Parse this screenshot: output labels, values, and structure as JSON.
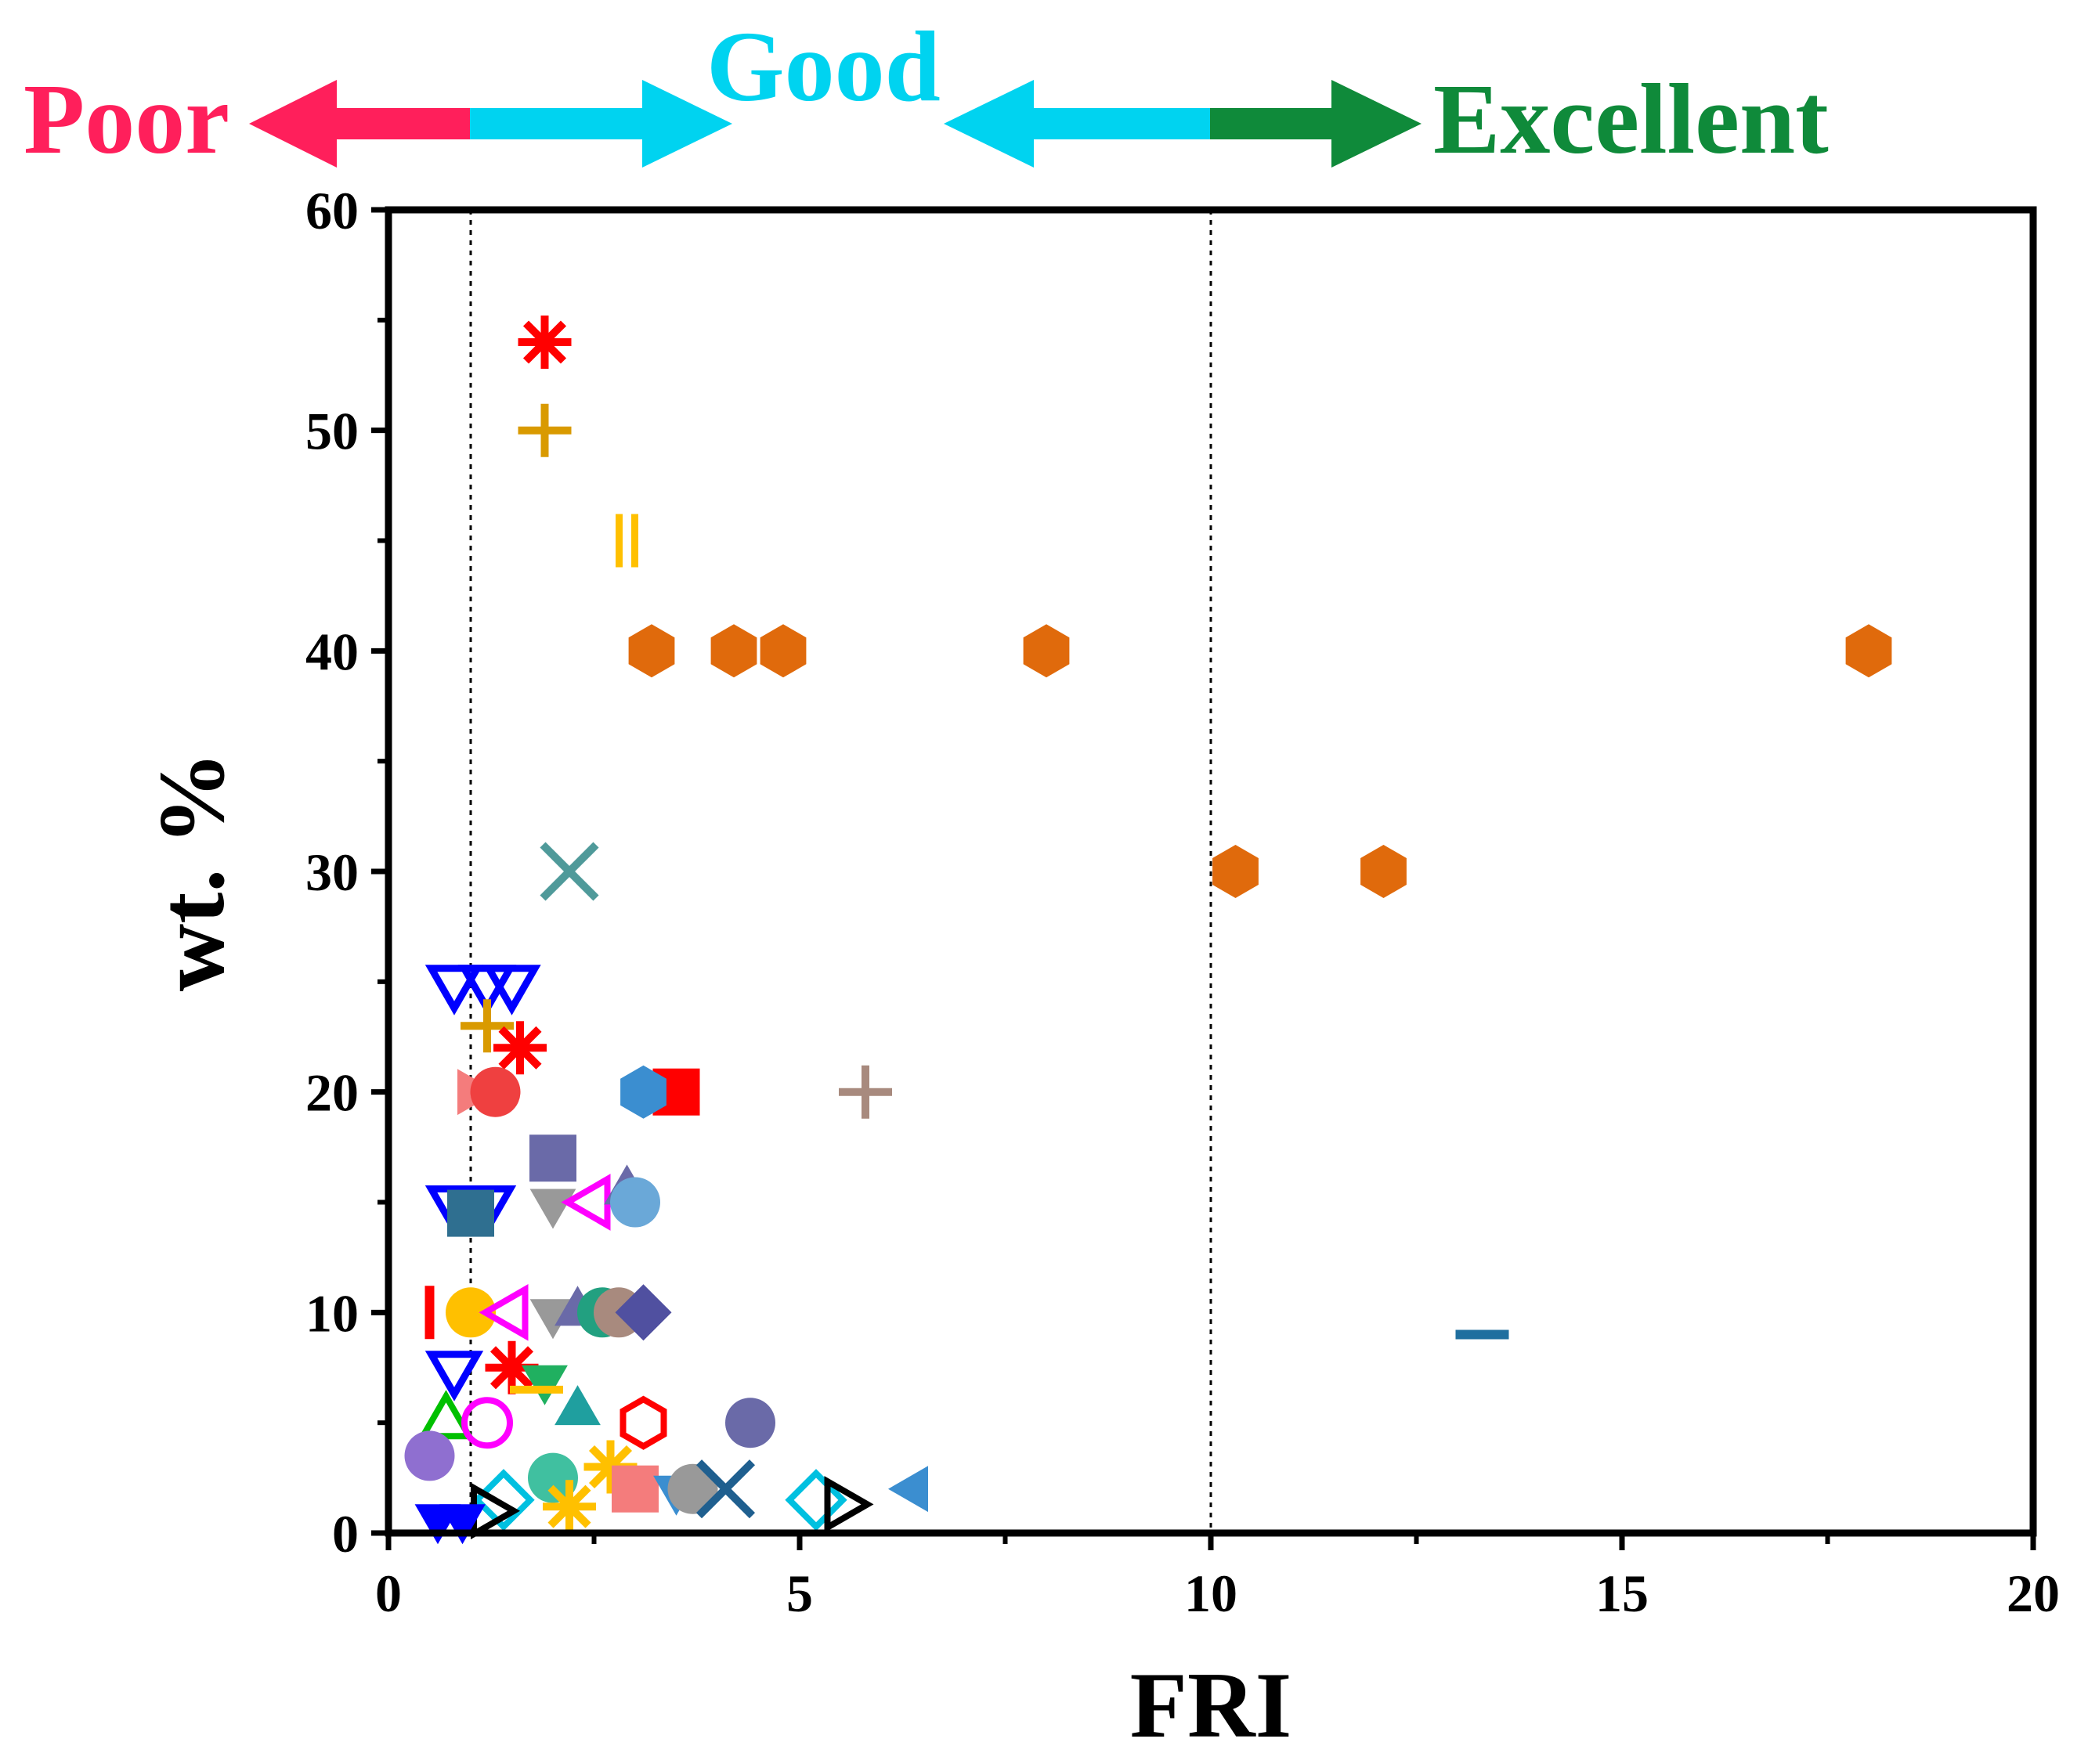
{
  "chart_data": {
    "type": "scatter",
    "xlabel": "FRI",
    "ylabel": "wt. %",
    "xlim": [
      0,
      20
    ],
    "ylim": [
      0,
      60
    ],
    "xticks": [
      0,
      5,
      10,
      15,
      20
    ],
    "yticks": [
      0,
      10,
      20,
      30,
      40,
      50,
      60
    ],
    "xtick_labels": [
      "0",
      "5",
      "10",
      "15",
      "20"
    ],
    "ytick_labels": [
      "0",
      "10",
      "20",
      "30",
      "40",
      "50",
      "60"
    ],
    "grid": false,
    "legend": "none",
    "reference_lines_x": [
      1,
      10
    ],
    "regions": [
      {
        "label": "Poor",
        "color": "#ff1f5b"
      },
      {
        "label": "Good",
        "color": "#00d3f0"
      },
      {
        "label": "Excellent",
        "color": "#0f8a3a"
      }
    ],
    "points": [
      {
        "x": 1.9,
        "y": 54,
        "marker": "asterisk",
        "color": "#ff0000"
      },
      {
        "x": 1.9,
        "y": 50,
        "marker": "plus",
        "color": "#d99a00"
      },
      {
        "x": 2.9,
        "y": 45,
        "marker": "vbars",
        "color": "#ffc000"
      },
      {
        "x": 3.2,
        "y": 40,
        "marker": "hexagon",
        "color": "#e06a0c"
      },
      {
        "x": 4.2,
        "y": 40,
        "marker": "hexagon",
        "color": "#e06a0c"
      },
      {
        "x": 4.8,
        "y": 40,
        "marker": "hexagon",
        "color": "#e06a0c"
      },
      {
        "x": 8.0,
        "y": 40,
        "marker": "hexagon",
        "color": "#e06a0c"
      },
      {
        "x": 18.0,
        "y": 40,
        "marker": "hexagon",
        "color": "#e06a0c"
      },
      {
        "x": 2.2,
        "y": 30,
        "marker": "cross",
        "color": "#4f9a9a"
      },
      {
        "x": 10.3,
        "y": 30,
        "marker": "hexagon",
        "color": "#e06a0c"
      },
      {
        "x": 12.1,
        "y": 30,
        "marker": "hexagon",
        "color": "#e06a0c"
      },
      {
        "x": 0.8,
        "y": 25,
        "marker": "tri-down-open",
        "color": "#0000ff"
      },
      {
        "x": 1.2,
        "y": 25,
        "marker": "tri-down-open",
        "color": "#0000ff"
      },
      {
        "x": 1.5,
        "y": 25,
        "marker": "tri-down-open",
        "color": "#0000ff"
      },
      {
        "x": 1.2,
        "y": 23,
        "marker": "plus",
        "color": "#d99a00"
      },
      {
        "x": 1.6,
        "y": 22,
        "marker": "asterisk",
        "color": "#ff0000"
      },
      {
        "x": 1.0,
        "y": 20,
        "marker": "tri-right",
        "color": "#f47c7c"
      },
      {
        "x": 1.3,
        "y": 20,
        "marker": "circle",
        "color": "#ef4040"
      },
      {
        "x": 3.5,
        "y": 20,
        "marker": "square",
        "color": "#ff0000"
      },
      {
        "x": 3.1,
        "y": 20,
        "marker": "hexagon",
        "color": "#3b8ed0"
      },
      {
        "x": 5.8,
        "y": 20,
        "marker": "plus",
        "color": "#a88a7e"
      },
      {
        "x": 2.0,
        "y": 17,
        "marker": "square",
        "color": "#6a6aa8"
      },
      {
        "x": 0.8,
        "y": 15,
        "marker": "tri-down-open",
        "color": "#0000ff"
      },
      {
        "x": 1.2,
        "y": 15,
        "marker": "tri-down-open",
        "color": "#0000ff"
      },
      {
        "x": 1.0,
        "y": 14.5,
        "marker": "square",
        "color": "#2f6f90"
      },
      {
        "x": 2.0,
        "y": 15,
        "marker": "tri-down",
        "color": "#999999"
      },
      {
        "x": 2.5,
        "y": 15,
        "marker": "tri-left-open",
        "color": "#ff00ff"
      },
      {
        "x": 2.9,
        "y": 15.5,
        "marker": "triangle",
        "color": "#6a6aa8"
      },
      {
        "x": 3.0,
        "y": 15,
        "marker": "circle",
        "color": "#6aa8d8"
      },
      {
        "x": 0.5,
        "y": 10,
        "marker": "vbar",
        "color": "#ff0000"
      },
      {
        "x": 1.0,
        "y": 10,
        "marker": "circle",
        "color": "#ffc000"
      },
      {
        "x": 1.5,
        "y": 10,
        "marker": "tri-left-open",
        "color": "#ff00ff"
      },
      {
        "x": 2.0,
        "y": 10,
        "marker": "tri-down",
        "color": "#999999"
      },
      {
        "x": 2.3,
        "y": 10,
        "marker": "triangle",
        "color": "#6a6aa8"
      },
      {
        "x": 2.6,
        "y": 10,
        "marker": "circle",
        "color": "#22a080"
      },
      {
        "x": 2.8,
        "y": 10,
        "marker": "circle",
        "color": "#a88a7e"
      },
      {
        "x": 3.1,
        "y": 10,
        "marker": "diamond",
        "color": "#5050a0"
      },
      {
        "x": 13.3,
        "y": 9,
        "marker": "dash",
        "color": "#1f6f9f"
      },
      {
        "x": 0.8,
        "y": 7.5,
        "marker": "tri-down-open",
        "color": "#0000ff"
      },
      {
        "x": 1.5,
        "y": 7.5,
        "marker": "asterisk",
        "color": "#ff0000"
      },
      {
        "x": 1.9,
        "y": 7,
        "marker": "tri-down",
        "color": "#20b060"
      },
      {
        "x": 1.8,
        "y": 6.5,
        "marker": "hline",
        "color": "#ffc000"
      },
      {
        "x": 0.7,
        "y": 5,
        "marker": "triangle-open",
        "color": "#00c000"
      },
      {
        "x": 1.2,
        "y": 5,
        "marker": "circle-open",
        "color": "#ff00ff"
      },
      {
        "x": 2.3,
        "y": 5.5,
        "marker": "triangle",
        "color": "#1f9f9f"
      },
      {
        "x": 3.1,
        "y": 5,
        "marker": "hexagon-open",
        "color": "#ff0000"
      },
      {
        "x": 4.4,
        "y": 5,
        "marker": "circle",
        "color": "#6a6aa8"
      },
      {
        "x": 0.5,
        "y": 3.5,
        "marker": "circle",
        "color": "#8f6fd0"
      },
      {
        "x": 2.7,
        "y": 3,
        "marker": "asterisk",
        "color": "#ffc000"
      },
      {
        "x": 2.0,
        "y": 2.5,
        "marker": "circle",
        "color": "#40c0a0"
      },
      {
        "x": 3.0,
        "y": 2,
        "marker": "square",
        "color": "#f47c7c"
      },
      {
        "x": 3.5,
        "y": 2,
        "marker": "tri-down",
        "color": "#3b8ed0"
      },
      {
        "x": 3.7,
        "y": 2,
        "marker": "circle",
        "color": "#999999"
      },
      {
        "x": 4.1,
        "y": 2,
        "marker": "cross",
        "color": "#1f5f8f"
      },
      {
        "x": 6.4,
        "y": 2,
        "marker": "tri-left",
        "color": "#3b8ed0"
      },
      {
        "x": 1.4,
        "y": 1.5,
        "marker": "diamond-open",
        "color": "#00c0e0"
      },
      {
        "x": 2.2,
        "y": 1.2,
        "marker": "asterisk",
        "color": "#ffc000"
      },
      {
        "x": 5.2,
        "y": 1.5,
        "marker": "diamond-open",
        "color": "#00c0e0"
      },
      {
        "x": 5.5,
        "y": 1.3,
        "marker": "tri-right-open",
        "color": "#000000"
      },
      {
        "x": 1.2,
        "y": 1.0,
        "marker": "tri-right-open",
        "color": "#000000"
      },
      {
        "x": 0.6,
        "y": 0.7,
        "marker": "tri-down",
        "color": "#0000ff"
      },
      {
        "x": 0.9,
        "y": 0.7,
        "marker": "tri-down",
        "color": "#0000ff"
      }
    ]
  }
}
